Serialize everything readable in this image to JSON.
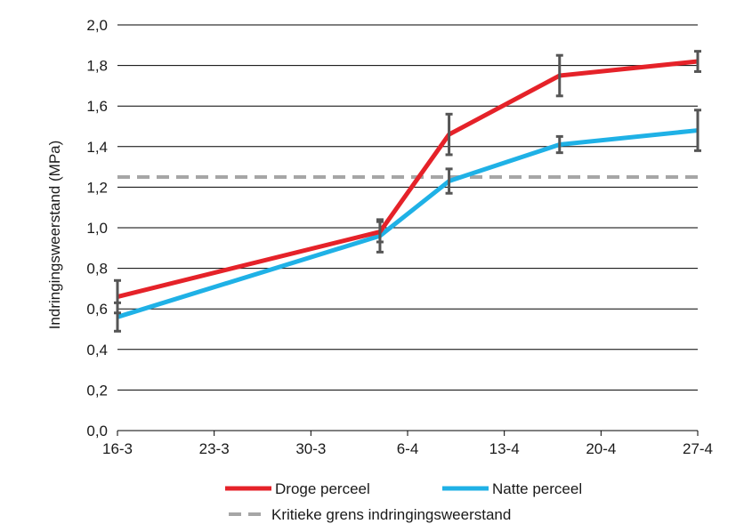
{
  "chart_data": {
    "type": "line",
    "title": "",
    "xlabel": "",
    "ylabel": "Indringingsweerstand (MPa)",
    "x_tick_labels": [
      "16-3",
      "23-3",
      "30-3",
      "6-4",
      "13-4",
      "20-4",
      "27-4"
    ],
    "x_range": [
      "16-3",
      "27-4"
    ],
    "y_tick_labels": [
      "0,0",
      "0,2",
      "0,4",
      "0,6",
      "0,8",
      "1,0",
      "1,2",
      "1,4",
      "1,6",
      "1,8",
      "2,0"
    ],
    "ylim": [
      0,
      2.0
    ],
    "grid": "horizontal",
    "legend_position": "bottom",
    "series": [
      {
        "name": "Droge perceel",
        "color": "#e52229",
        "x": [
          "16-3",
          "4-4",
          "9-4",
          "17-4",
          "27-4"
        ],
        "y": [
          0.66,
          0.98,
          1.46,
          1.75,
          1.82
        ],
        "error": [
          0.08,
          0.05,
          0.1,
          0.1,
          0.05
        ]
      },
      {
        "name": "Natte perceel",
        "color": "#1fb1e6",
        "x": [
          "16-3",
          "4-4",
          "9-4",
          "17-4",
          "27-4"
        ],
        "y": [
          0.56,
          0.96,
          1.23,
          1.41,
          1.48
        ],
        "error": [
          0.07,
          0.08,
          0.06,
          0.04,
          0.1
        ]
      },
      {
        "name": "Kritieke grens indringingsweerstand",
        "color": "#a6a6a6",
        "style": "dashed",
        "x": [
          "16-3",
          "27-4"
        ],
        "y": [
          1.25,
          1.25
        ]
      }
    ]
  },
  "colors": {
    "errorbar": "#555555",
    "gridline": "#000000"
  }
}
